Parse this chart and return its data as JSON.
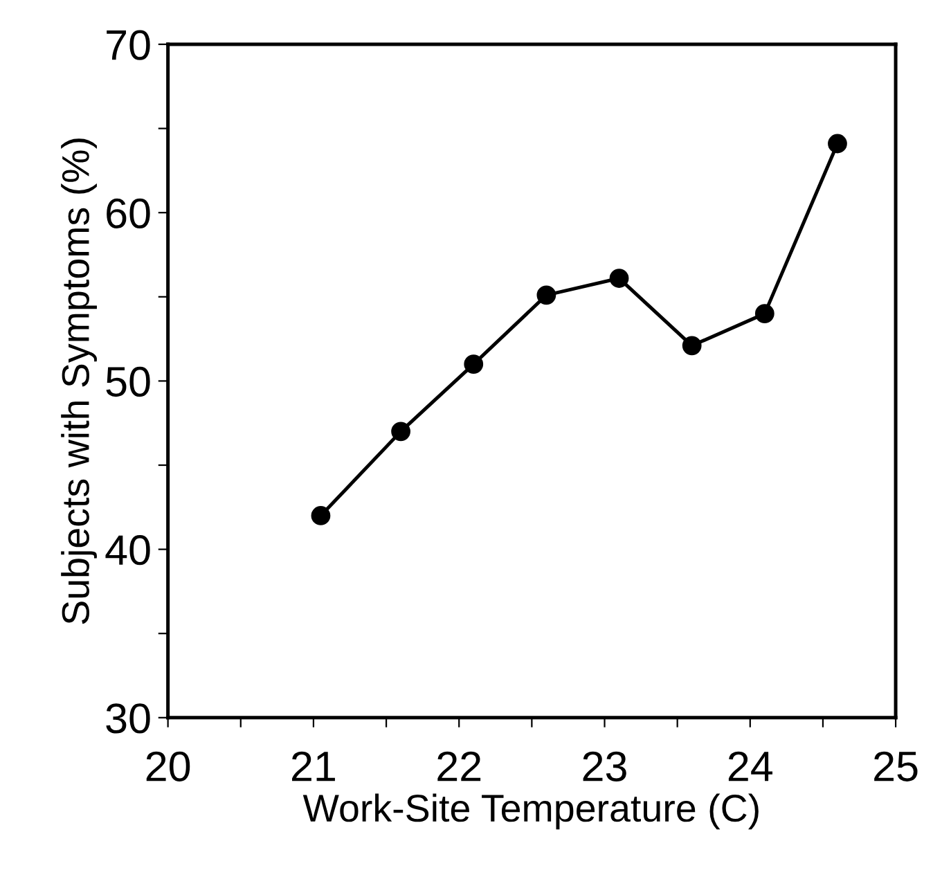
{
  "chart_data": {
    "type": "line",
    "xlabel": "Work-Site Temperature (C)",
    "ylabel": "Subjects with Symptoms (%)",
    "x": [
      21.05,
      21.6,
      22.1,
      22.6,
      23.1,
      23.6,
      24.1,
      24.6
    ],
    "series": [
      {
        "color": "#000000",
        "values": [
          42.0,
          47.0,
          51.0,
          55.1,
          56.1,
          52.1,
          54.0,
          64.1
        ]
      }
    ],
    "xlim": [
      20,
      25
    ],
    "ylim": [
      30,
      70
    ],
    "xticks": [
      20,
      {
        "value": 20.5,
        "label": null
      },
      21,
      {
        "value": 21.5,
        "label": null
      },
      22,
      {
        "value": 22.5,
        "label": null
      },
      23,
      {
        "value": 23.5,
        "label": null
      },
      24,
      {
        "value": 24.5,
        "label": null
      },
      25
    ],
    "yticks": [
      30,
      {
        "value": 35,
        "label": null
      },
      40,
      {
        "value": 45,
        "label": null
      },
      50,
      {
        "value": 55,
        "label": null
      },
      60,
      {
        "value": 65,
        "label": null
      },
      70
    ],
    "marker": "circle",
    "line_style": "solid",
    "grid": false,
    "legend": false
  }
}
